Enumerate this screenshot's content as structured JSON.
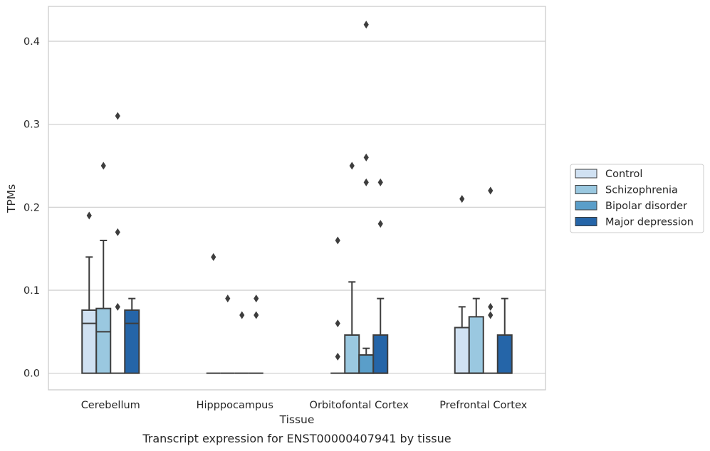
{
  "chart_data": {
    "type": "box",
    "xlabel": "Tissue",
    "ylabel": "TPMs",
    "caption": "Transcript expression for ENST00000407941 by tissue",
    "ylim": [
      -0.02,
      0.442
    ],
    "yticks": [
      0.0,
      0.1,
      0.2,
      0.3,
      0.4
    ],
    "ytick_labels": [
      "0.0",
      "0.1",
      "0.2",
      "0.3",
      "0.4"
    ],
    "grid": true,
    "legend_position": "right",
    "categories": [
      "Cerebellum",
      "Hipppocampus",
      "Orbitofontal Cortex",
      "Prefrontal Cortex"
    ],
    "series": [
      {
        "name": "Control",
        "color": "#d0e1f2",
        "boxes": [
          {
            "q1": 0.0,
            "median": 0.06,
            "q3": 0.076,
            "whisker_low": 0.0,
            "whisker_high": 0.14,
            "outliers": [
              0.19
            ]
          },
          {
            "q1": 0.0,
            "median": 0.0,
            "q3": 0.0,
            "whisker_low": 0.0,
            "whisker_high": 0.0,
            "outliers": [
              0.14
            ]
          },
          {
            "q1": 0.0,
            "median": 0.0,
            "q3": 0.0,
            "whisker_low": 0.0,
            "whisker_high": 0.0,
            "outliers": [
              0.02,
              0.06,
              0.16
            ]
          },
          {
            "q1": 0.0,
            "median": 0.0,
            "q3": 0.055,
            "whisker_low": 0.0,
            "whisker_high": 0.08,
            "outliers": [
              0.21
            ]
          }
        ]
      },
      {
        "name": "Schizophrenia",
        "color": "#9ac8e0",
        "boxes": [
          {
            "q1": 0.0,
            "median": 0.05,
            "q3": 0.078,
            "whisker_low": 0.0,
            "whisker_high": 0.16,
            "outliers": [
              0.25
            ]
          },
          {
            "q1": 0.0,
            "median": 0.0,
            "q3": 0.0,
            "whisker_low": 0.0,
            "whisker_high": 0.0,
            "outliers": [
              0.09
            ]
          },
          {
            "q1": 0.0,
            "median": 0.0,
            "q3": 0.046,
            "whisker_low": 0.0,
            "whisker_high": 0.11,
            "outliers": [
              0.25
            ]
          },
          {
            "q1": 0.0,
            "median": 0.0,
            "q3": 0.068,
            "whisker_low": 0.0,
            "whisker_high": 0.09,
            "outliers": []
          }
        ]
      },
      {
        "name": "Bipolar disorder",
        "color": "#5a9ec9",
        "boxes": [
          {
            "q1": 0.0,
            "median": 0.0,
            "q3": 0.0,
            "whisker_low": 0.0,
            "whisker_high": 0.0,
            "outliers": [
              0.08,
              0.17,
              0.31
            ]
          },
          {
            "q1": 0.0,
            "median": 0.0,
            "q3": 0.0,
            "whisker_low": 0.0,
            "whisker_high": 0.0,
            "outliers": [
              0.07
            ]
          },
          {
            "q1": 0.0,
            "median": 0.0,
            "q3": 0.022,
            "whisker_low": 0.0,
            "whisker_high": 0.03,
            "outliers": [
              0.23,
              0.26,
              0.42
            ]
          },
          {
            "q1": 0.0,
            "median": 0.0,
            "q3": 0.0,
            "whisker_low": 0.0,
            "whisker_high": 0.0,
            "outliers": [
              0.07,
              0.08,
              0.22
            ]
          }
        ]
      },
      {
        "name": "Major depression",
        "color": "#2565a8",
        "boxes": [
          {
            "q1": 0.0,
            "median": 0.06,
            "q3": 0.076,
            "whisker_low": 0.0,
            "whisker_high": 0.09,
            "outliers": []
          },
          {
            "q1": 0.0,
            "median": 0.0,
            "q3": 0.0,
            "whisker_low": 0.0,
            "whisker_high": 0.0,
            "outliers": [
              0.07,
              0.09
            ]
          },
          {
            "q1": 0.0,
            "median": 0.0,
            "q3": 0.046,
            "whisker_low": 0.0,
            "whisker_high": 0.09,
            "outliers": [
              0.18,
              0.23
            ]
          },
          {
            "q1": 0.0,
            "median": 0.0,
            "q3": 0.046,
            "whisker_low": 0.0,
            "whisker_high": 0.09,
            "outliers": []
          }
        ]
      }
    ]
  }
}
